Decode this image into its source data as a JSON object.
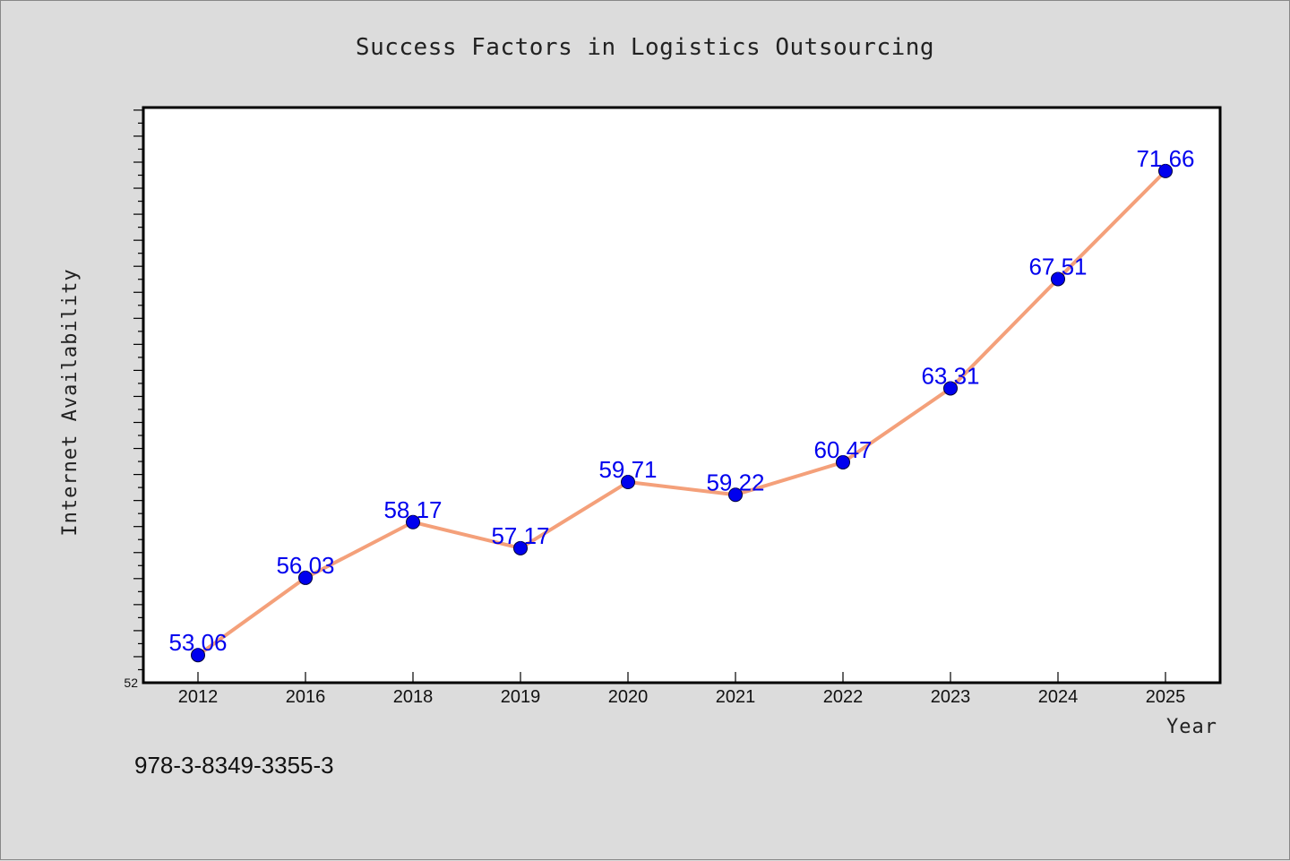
{
  "chart_data": {
    "type": "line",
    "title": "Success Factors in Logistics Outsourcing",
    "xlabel": "Year",
    "ylabel": "Internet Availability",
    "categories": [
      "2012",
      "2016",
      "2018",
      "2019",
      "2020",
      "2021",
      "2022",
      "2023",
      "2024",
      "2025"
    ],
    "series": [
      {
        "values": [
          53.06,
          56.03,
          58.17,
          57.17,
          59.71,
          59.22,
          60.47,
          63.31,
          67.51,
          71.66
        ],
        "labels": [
          "53.06",
          "56.03",
          "58.17",
          "57.17",
          "59.71",
          "59.22",
          "60.47",
          "63.31",
          "67.51",
          "71.66"
        ]
      }
    ],
    "ylim": [
      52,
      74.1
    ],
    "yticks_labeled": [
      "52"
    ],
    "grid": false,
    "line_color": "#f4a07a",
    "marker_color": "#0000ee",
    "label_color": "#0000ee"
  },
  "footer": {
    "isbn": "978-3-8349-3355-3"
  }
}
